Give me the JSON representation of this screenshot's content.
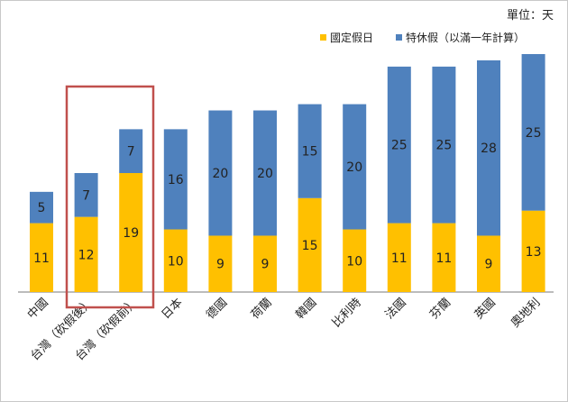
{
  "chart_data": {
    "type": "bar",
    "stacked": true,
    "unit_label": "單位：天",
    "categories": [
      "中國",
      "台灣（砍假後）",
      "台灣（砍假前）",
      "日本",
      "德國",
      "荷蘭",
      "韓國",
      "比利時",
      "法國",
      "芬蘭",
      "英國",
      "奧地利"
    ],
    "series": [
      {
        "name": "國定假日",
        "color": "#FFC000",
        "values": [
          11,
          12,
          19,
          10,
          9,
          9,
          15,
          10,
          11,
          11,
          9,
          13
        ]
      },
      {
        "name": "特休假（以滿一年計算）",
        "color": "#4F81BD",
        "values": [
          5,
          7,
          7,
          16,
          20,
          20,
          15,
          20,
          25,
          25,
          28,
          25
        ]
      }
    ],
    "ylim": [
      0,
      38
    ],
    "grid": false,
    "legend": "top-right",
    "highlight_categories": [
      "台灣（砍假後）",
      "台灣（砍假前）"
    ],
    "highlight_color": "#C0504D"
  }
}
